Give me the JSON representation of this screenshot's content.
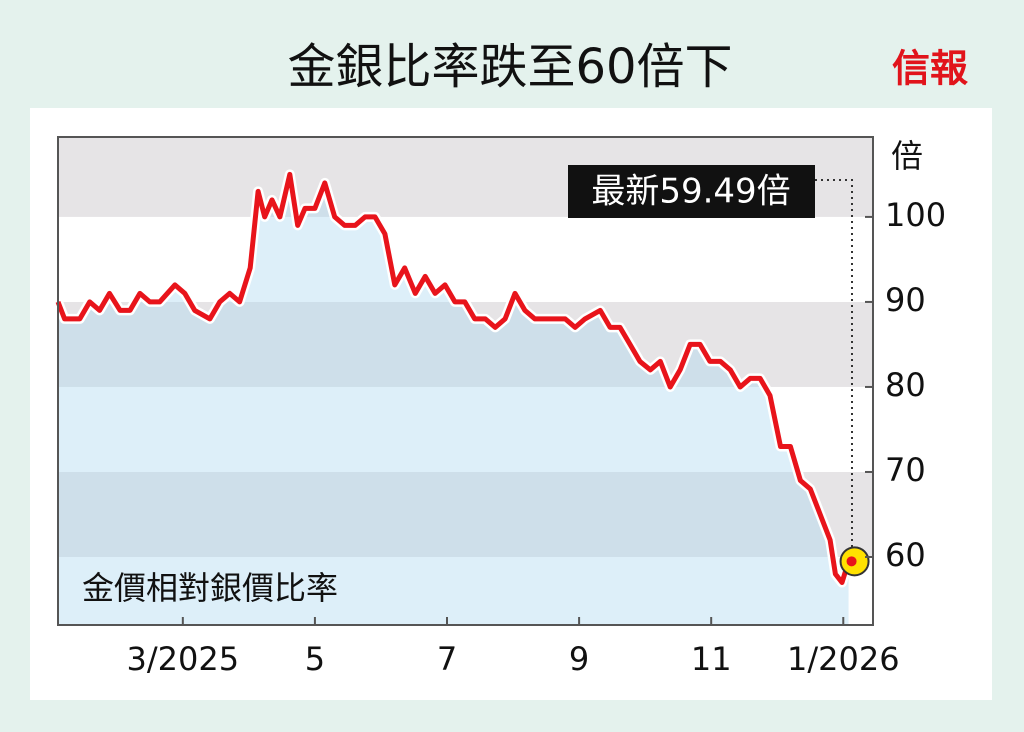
{
  "chart_data": {
    "type": "line",
    "title": "金銀比率跌至60倍下",
    "brand": "信報",
    "subtitle": "金價相對銀價比率",
    "y_unit": "倍",
    "annotation": "最新59.49倍",
    "x": [
      1.11,
      1.21,
      1.44,
      1.59,
      1.74,
      1.89,
      2.05,
      2.2,
      2.35,
      2.5,
      2.65,
      2.88,
      3.03,
      3.18,
      3.41,
      3.56,
      3.71,
      3.86,
      4.02,
      4.14,
      4.24,
      4.35,
      4.47,
      4.62,
      4.74,
      4.85,
      5.0,
      5.15,
      5.3,
      5.45,
      5.61,
      5.76,
      5.91,
      6.06,
      6.21,
      6.36,
      6.52,
      6.67,
      6.82,
      6.97,
      7.12,
      7.27,
      7.42,
      7.58,
      7.73,
      7.88,
      8.03,
      8.18,
      8.33,
      8.48,
      8.64,
      8.79,
      8.94,
      9.09,
      9.32,
      9.47,
      9.62,
      9.77,
      9.92,
      10.08,
      10.23,
      10.38,
      10.53,
      10.68,
      10.83,
      10.98,
      11.14,
      11.29,
      11.44,
      11.59,
      11.74,
      11.89,
      12.05,
      12.2,
      12.35,
      12.5,
      12.65,
      12.8,
      12.88,
      12.98,
      13.08
    ],
    "series": [
      {
        "name": "金價相對銀價比率",
        "color": "#e8141b",
        "values": [
          90,
          88,
          88,
          90,
          89,
          91,
          89,
          89,
          91,
          90,
          90,
          92,
          91,
          89,
          88,
          90,
          91,
          90,
          94,
          103,
          100,
          102,
          100,
          105,
          99,
          101,
          101,
          104,
          100,
          99,
          99,
          100,
          100,
          98,
          92,
          94,
          91,
          93,
          91,
          92,
          90,
          90,
          88,
          88,
          87,
          88,
          91,
          89,
          88,
          88,
          88,
          88,
          87,
          88,
          89,
          87,
          87,
          85,
          83,
          82,
          83,
          80,
          82,
          85,
          85,
          83,
          83,
          82,
          80,
          81,
          81,
          79,
          73,
          73,
          69,
          68,
          65,
          62,
          58,
          57,
          59.49
        ]
      }
    ],
    "xlim": [
      1.11,
      13.45
    ],
    "ylim": [
      52,
      109.4
    ],
    "xticks": [
      {
        "value": 3,
        "label": "3/2025"
      },
      5,
      7,
      9,
      11,
      {
        "value": 13,
        "label": "1/2026"
      }
    ],
    "yticks": [
      60,
      70,
      80,
      90,
      100
    ]
  }
}
